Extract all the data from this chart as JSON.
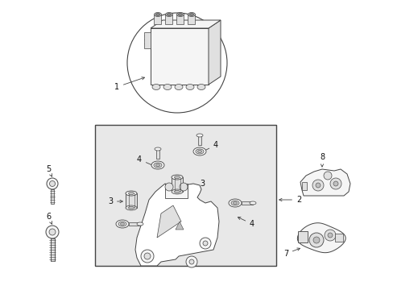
{
  "bg_color": "#ffffff",
  "line_color": "#444444",
  "fill_light": "#f5f5f5",
  "fill_mid": "#e0e0e0",
  "fill_dark": "#c0c0c0",
  "fill_box": "#e8e8e8",
  "figsize": [
    4.89,
    3.6
  ],
  "dpi": 100,
  "label_fontsize": 7.0,
  "label_color": "#111111"
}
